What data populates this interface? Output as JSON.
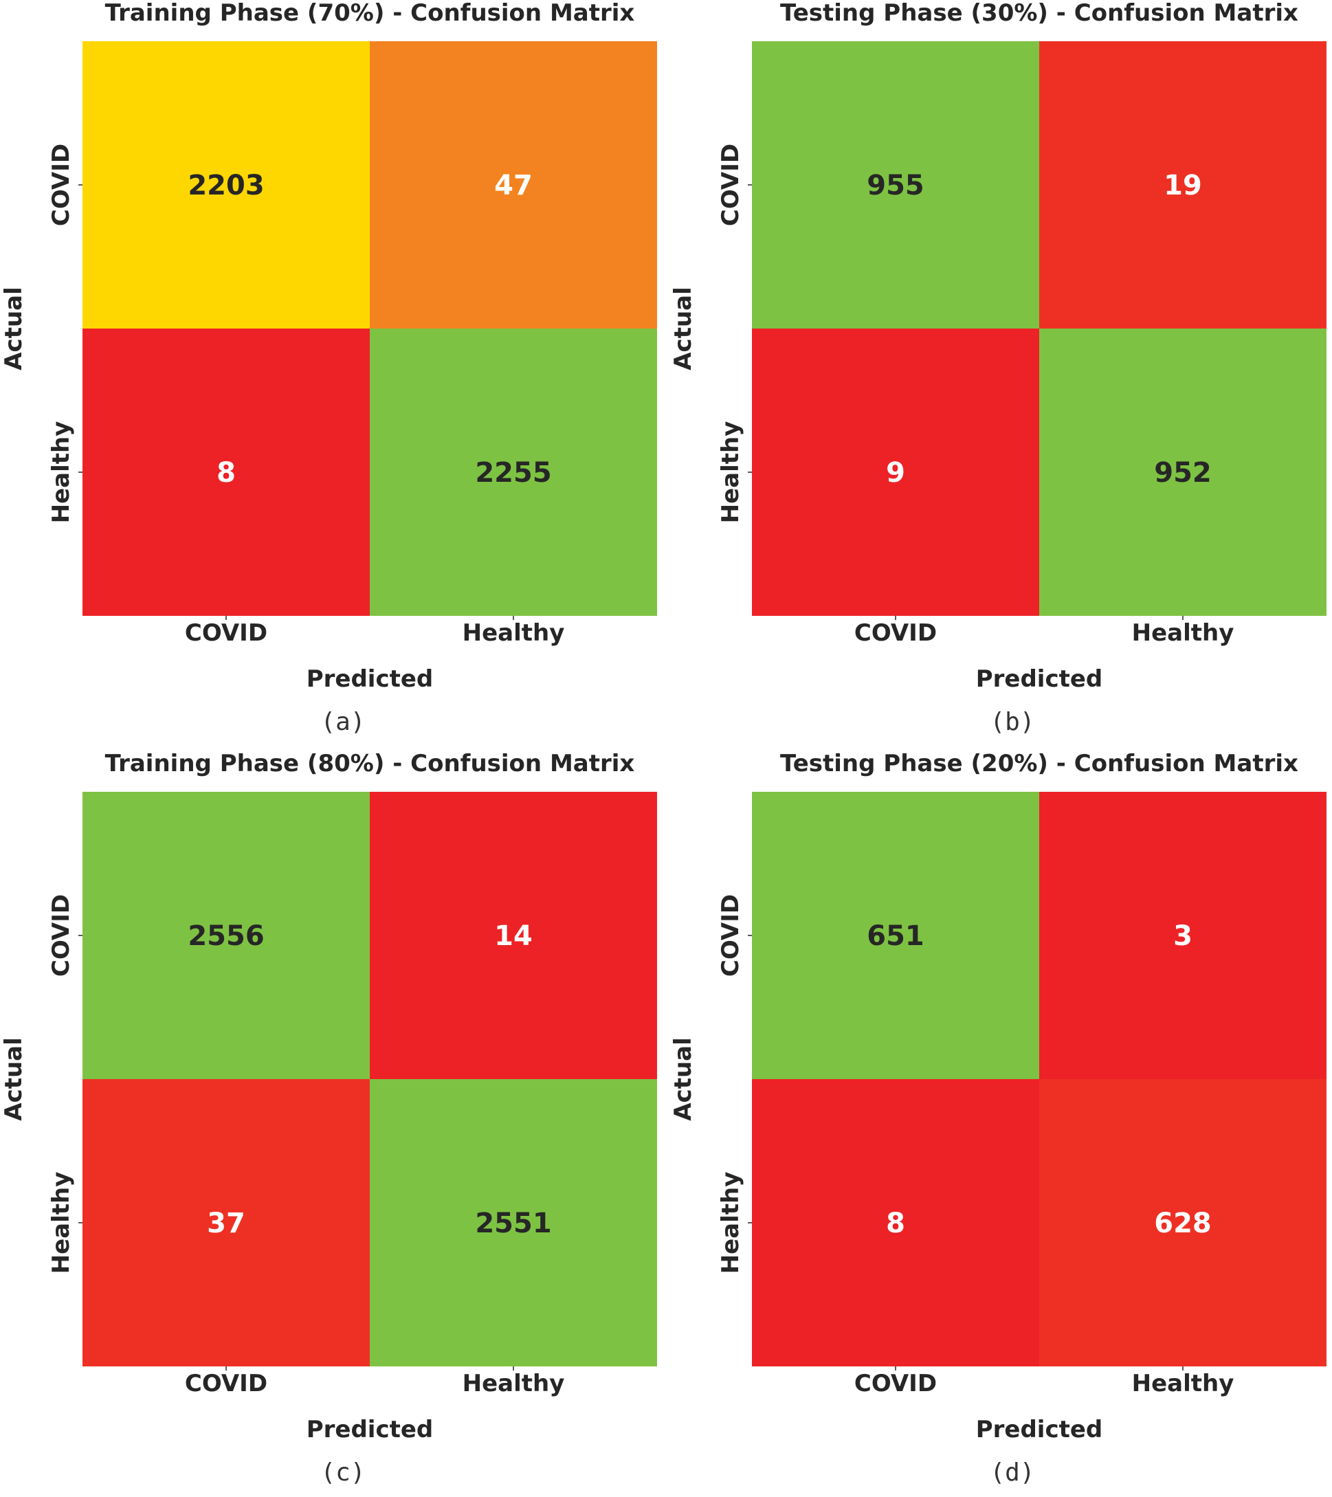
{
  "row_label": "Actual",
  "col_label": "Predicted",
  "chart_data": [
    {
      "type": "heatmap",
      "title": "Training Phase (70%) - Confusion Matrix",
      "caption": "(a)",
      "xlabel": "Predicted",
      "ylabel": "Actual",
      "x_categories": [
        "COVID",
        "Healthy"
      ],
      "y_categories": [
        "COVID",
        "Healthy"
      ],
      "values": [
        [
          2203,
          47
        ],
        [
          8,
          2255
        ]
      ],
      "cell_colors": [
        [
          "#ffd700",
          "#f38320"
        ],
        [
          "#ed2226",
          "#7ec243"
        ]
      ],
      "text_colors": [
        [
          "#262626",
          "#ffffff"
        ],
        [
          "#ffffff",
          "#262626"
        ]
      ]
    },
    {
      "type": "heatmap",
      "title": "Testing Phase (30%) - Confusion Matrix",
      "caption": "(b)",
      "xlabel": "Predicted",
      "ylabel": "Actual",
      "x_categories": [
        "COVID",
        "Healthy"
      ],
      "y_categories": [
        "COVID",
        "Healthy"
      ],
      "values": [
        [
          955,
          19
        ],
        [
          9,
          952
        ]
      ],
      "cell_colors": [
        [
          "#7ec243",
          "#ee3024"
        ],
        [
          "#ed2226",
          "#7ec243"
        ]
      ],
      "text_colors": [
        [
          "#262626",
          "#ffffff"
        ],
        [
          "#ffffff",
          "#262626"
        ]
      ]
    },
    {
      "type": "heatmap",
      "title": "Training Phase (80%) - Confusion Matrix",
      "caption": "(c)",
      "xlabel": "Predicted",
      "ylabel": "Actual",
      "x_categories": [
        "COVID",
        "Healthy"
      ],
      "y_categories": [
        "COVID",
        "Healthy"
      ],
      "values": [
        [
          2556,
          14
        ],
        [
          37,
          2551
        ]
      ],
      "cell_colors": [
        [
          "#7ec243",
          "#ed2226"
        ],
        [
          "#ee3024",
          "#7ec243"
        ]
      ],
      "text_colors": [
        [
          "#262626",
          "#ffffff"
        ],
        [
          "#ffffff",
          "#262626"
        ]
      ]
    },
    {
      "type": "heatmap",
      "title": "Testing Phase (20%) - Confusion Matrix",
      "caption": "(d)",
      "xlabel": "Predicted",
      "ylabel": "Actual",
      "x_categories": [
        "COVID",
        "Healthy"
      ],
      "y_categories": [
        "COVID",
        "Healthy"
      ],
      "values": [
        [
          651,
          3
        ],
        [
          8,
          628
        ]
      ],
      "cell_colors": [
        [
          "#7ec243",
          "#ed2226"
        ],
        [
          "#ed2226",
          "#ee3024"
        ]
      ],
      "text_colors": [
        [
          "#262626",
          "#ffffff"
        ],
        [
          "#ffffff",
          "#ffffff"
        ]
      ]
    }
  ]
}
